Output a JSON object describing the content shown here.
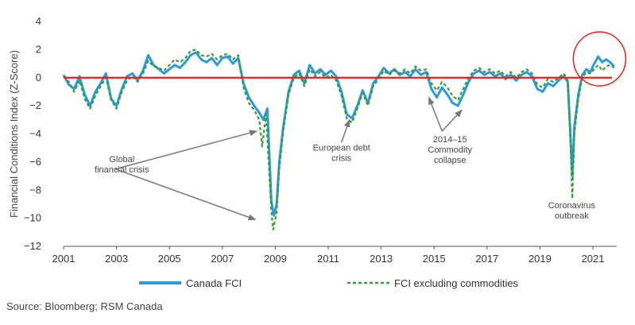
{
  "chart_data": {
    "type": "line",
    "ylabel": "Financial Conditions Index (Z-Score)",
    "xlim": [
      2001,
      2021.9
    ],
    "ylim": [
      -12,
      4
    ],
    "yticks": [
      4,
      2,
      0,
      -2,
      -4,
      -6,
      -8,
      -10,
      -12
    ],
    "ytick_labels": [
      "4",
      "2",
      "0",
      "−2",
      "−4",
      "−6",
      "−8",
      "−10",
      "−12"
    ],
    "xticks": [
      2001,
      2003,
      2005,
      2007,
      2009,
      2011,
      2013,
      2015,
      2017,
      2019,
      2021
    ],
    "xtick_labels": [
      "2001",
      "2003",
      "2005",
      "2007",
      "2009",
      "2011",
      "2013",
      "2015",
      "2017",
      "2019",
      "2021"
    ],
    "zero_line": {
      "value": 0,
      "color": "#e8201a"
    },
    "legend_position": "bottom",
    "series": [
      {
        "name": "Canada FCI",
        "color": "#2a9ad8",
        "style": "solid",
        "points": [
          [
            2001.0,
            0.2
          ],
          [
            2001.2,
            -0.5
          ],
          [
            2001.4,
            -0.8
          ],
          [
            2001.6,
            0.1
          ],
          [
            2001.8,
            -1.2
          ],
          [
            2002.0,
            -2.0
          ],
          [
            2002.2,
            -1.0
          ],
          [
            2002.4,
            -0.4
          ],
          [
            2002.6,
            0.3
          ],
          [
            2002.8,
            -1.5
          ],
          [
            2003.0,
            -2.0
          ],
          [
            2003.2,
            -0.8
          ],
          [
            2003.4,
            0.1
          ],
          [
            2003.6,
            0.3
          ],
          [
            2003.8,
            -0.2
          ],
          [
            2004.0,
            0.5
          ],
          [
            2004.2,
            1.6
          ],
          [
            2004.4,
            0.9
          ],
          [
            2004.6,
            0.6
          ],
          [
            2004.8,
            0.3
          ],
          [
            2005.0,
            0.6
          ],
          [
            2005.2,
            0.9
          ],
          [
            2005.4,
            0.7
          ],
          [
            2005.6,
            1.1
          ],
          [
            2005.8,
            1.6
          ],
          [
            2006.0,
            1.8
          ],
          [
            2006.2,
            1.3
          ],
          [
            2006.4,
            1.1
          ],
          [
            2006.6,
            1.4
          ],
          [
            2006.8,
            0.9
          ],
          [
            2007.0,
            1.4
          ],
          [
            2007.2,
            1.5
          ],
          [
            2007.4,
            1.0
          ],
          [
            2007.6,
            1.4
          ],
          [
            2007.8,
            -0.4
          ],
          [
            2008.0,
            -1.4
          ],
          [
            2008.2,
            -2.0
          ],
          [
            2008.4,
            -2.5
          ],
          [
            2008.55,
            -3.0
          ],
          [
            2008.7,
            -2.2
          ],
          [
            2008.85,
            -8.8
          ],
          [
            2008.95,
            -9.8
          ],
          [
            2009.05,
            -9.0
          ],
          [
            2009.15,
            -6.0
          ],
          [
            2009.3,
            -3.5
          ],
          [
            2009.5,
            -1.0
          ],
          [
            2009.7,
            0.2
          ],
          [
            2009.9,
            0.5
          ],
          [
            2010.1,
            -0.4
          ],
          [
            2010.3,
            0.9
          ],
          [
            2010.5,
            0.3
          ],
          [
            2010.7,
            0.6
          ],
          [
            2010.9,
            0.2
          ],
          [
            2011.1,
            0.5
          ],
          [
            2011.3,
            0.1
          ],
          [
            2011.5,
            -1.0
          ],
          [
            2011.7,
            -2.6
          ],
          [
            2011.9,
            -2.9
          ],
          [
            2012.1,
            -2.0
          ],
          [
            2012.3,
            -0.9
          ],
          [
            2012.5,
            -1.8
          ],
          [
            2012.7,
            -0.4
          ],
          [
            2012.9,
            0.1
          ],
          [
            2013.1,
            0.7
          ],
          [
            2013.3,
            0.3
          ],
          [
            2013.5,
            0.6
          ],
          [
            2013.7,
            0.2
          ],
          [
            2013.9,
            0.4
          ],
          [
            2014.1,
            0.1
          ],
          [
            2014.3,
            0.6
          ],
          [
            2014.5,
            0.2
          ],
          [
            2014.7,
            0.4
          ],
          [
            2014.9,
            -0.8
          ],
          [
            2015.1,
            -1.4
          ],
          [
            2015.3,
            -0.7
          ],
          [
            2015.5,
            -1.2
          ],
          [
            2015.7,
            -1.8
          ],
          [
            2015.9,
            -2.0
          ],
          [
            2016.1,
            -1.2
          ],
          [
            2016.3,
            -0.3
          ],
          [
            2016.5,
            0.3
          ],
          [
            2016.7,
            0.5
          ],
          [
            2016.9,
            0.2
          ],
          [
            2017.1,
            0.4
          ],
          [
            2017.3,
            0.1
          ],
          [
            2017.5,
            0.3
          ],
          [
            2017.7,
            -0.1
          ],
          [
            2017.9,
            0.2
          ],
          [
            2018.1,
            -0.2
          ],
          [
            2018.3,
            0.2
          ],
          [
            2018.5,
            0.4
          ],
          [
            2018.7,
            0.1
          ],
          [
            2018.9,
            -0.8
          ],
          [
            2019.1,
            -1.0
          ],
          [
            2019.3,
            -0.4
          ],
          [
            2019.5,
            -0.6
          ],
          [
            2019.7,
            -0.2
          ],
          [
            2019.9,
            0.1
          ],
          [
            2020.05,
            -0.3
          ],
          [
            2020.15,
            -4.0
          ],
          [
            2020.22,
            -7.0
          ],
          [
            2020.3,
            -3.5
          ],
          [
            2020.45,
            -1.2
          ],
          [
            2020.6,
            0.2
          ],
          [
            2020.75,
            0.6
          ],
          [
            2020.9,
            0.4
          ],
          [
            2021.05,
            1.0
          ],
          [
            2021.2,
            1.5
          ],
          [
            2021.35,
            1.1
          ],
          [
            2021.5,
            1.3
          ],
          [
            2021.65,
            1.1
          ],
          [
            2021.8,
            0.8
          ]
        ]
      },
      {
        "name": "FCI excluding commodities",
        "color": "#3a9a3a",
        "style": "dashed",
        "points": [
          [
            2001.0,
            0.1
          ],
          [
            2001.2,
            -0.3
          ],
          [
            2001.4,
            -1.0
          ],
          [
            2001.6,
            -0.2
          ],
          [
            2001.8,
            -1.5
          ],
          [
            2002.0,
            -2.2
          ],
          [
            2002.2,
            -1.3
          ],
          [
            2002.4,
            -0.6
          ],
          [
            2002.6,
            0.0
          ],
          [
            2002.8,
            -1.6
          ],
          [
            2003.0,
            -2.2
          ],
          [
            2003.2,
            -1.0
          ],
          [
            2003.4,
            -0.2
          ],
          [
            2003.6,
            0.1
          ],
          [
            2003.8,
            -0.3
          ],
          [
            2004.0,
            0.3
          ],
          [
            2004.2,
            1.2
          ],
          [
            2004.4,
            0.8
          ],
          [
            2004.6,
            0.7
          ],
          [
            2004.8,
            0.5
          ],
          [
            2005.0,
            0.9
          ],
          [
            2005.2,
            1.3
          ],
          [
            2005.4,
            1.1
          ],
          [
            2005.6,
            1.4
          ],
          [
            2005.8,
            1.9
          ],
          [
            2006.0,
            2.0
          ],
          [
            2006.2,
            1.6
          ],
          [
            2006.4,
            1.5
          ],
          [
            2006.6,
            1.7
          ],
          [
            2006.8,
            1.3
          ],
          [
            2007.0,
            1.6
          ],
          [
            2007.2,
            1.7
          ],
          [
            2007.4,
            1.3
          ],
          [
            2007.6,
            1.6
          ],
          [
            2007.8,
            -0.7
          ],
          [
            2008.0,
            -1.8
          ],
          [
            2008.2,
            -2.3
          ],
          [
            2008.4,
            -3.0
          ],
          [
            2008.5,
            -4.9
          ],
          [
            2008.65,
            -2.6
          ],
          [
            2008.85,
            -9.5
          ],
          [
            2008.92,
            -10.8
          ],
          [
            2009.05,
            -9.6
          ],
          [
            2009.15,
            -6.5
          ],
          [
            2009.3,
            -3.8
          ],
          [
            2009.5,
            -1.2
          ],
          [
            2009.7,
            0.0
          ],
          [
            2009.9,
            0.3
          ],
          [
            2010.1,
            -0.6
          ],
          [
            2010.3,
            0.6
          ],
          [
            2010.5,
            0.1
          ],
          [
            2010.7,
            0.4
          ],
          [
            2010.9,
            0.0
          ],
          [
            2011.1,
            0.2
          ],
          [
            2011.3,
            -0.2
          ],
          [
            2011.5,
            -1.3
          ],
          [
            2011.7,
            -2.9
          ],
          [
            2011.9,
            -3.2
          ],
          [
            2012.1,
            -2.2
          ],
          [
            2012.3,
            -1.1
          ],
          [
            2012.5,
            -2.0
          ],
          [
            2012.7,
            -0.6
          ],
          [
            2012.9,
            -0.1
          ],
          [
            2013.1,
            0.5
          ],
          [
            2013.3,
            0.2
          ],
          [
            2013.5,
            0.5
          ],
          [
            2013.7,
            0.3
          ],
          [
            2013.9,
            0.6
          ],
          [
            2014.1,
            0.3
          ],
          [
            2014.3,
            0.8
          ],
          [
            2014.5,
            0.5
          ],
          [
            2014.7,
            0.6
          ],
          [
            2014.9,
            -0.4
          ],
          [
            2015.1,
            -0.9
          ],
          [
            2015.3,
            -0.3
          ],
          [
            2015.5,
            -0.7
          ],
          [
            2015.7,
            -1.3
          ],
          [
            2015.9,
            -1.6
          ],
          [
            2016.1,
            -0.8
          ],
          [
            2016.3,
            0.0
          ],
          [
            2016.5,
            0.5
          ],
          [
            2016.7,
            0.7
          ],
          [
            2016.9,
            0.4
          ],
          [
            2017.1,
            0.6
          ],
          [
            2017.3,
            0.3
          ],
          [
            2017.5,
            0.5
          ],
          [
            2017.7,
            0.1
          ],
          [
            2017.9,
            0.4
          ],
          [
            2018.1,
            0.0
          ],
          [
            2018.3,
            0.4
          ],
          [
            2018.5,
            0.6
          ],
          [
            2018.7,
            0.3
          ],
          [
            2018.9,
            -0.5
          ],
          [
            2019.1,
            -0.7
          ],
          [
            2019.3,
            -0.1
          ],
          [
            2019.5,
            -0.3
          ],
          [
            2019.7,
            0.0
          ],
          [
            2019.9,
            0.3
          ],
          [
            2020.05,
            -0.2
          ],
          [
            2020.15,
            -4.5
          ],
          [
            2020.22,
            -8.6
          ],
          [
            2020.3,
            -4.0
          ],
          [
            2020.45,
            -1.5
          ],
          [
            2020.6,
            0.0
          ],
          [
            2020.75,
            0.4
          ],
          [
            2020.9,
            0.3
          ],
          [
            2021.05,
            0.6
          ],
          [
            2021.2,
            0.9
          ],
          [
            2021.35,
            0.5
          ],
          [
            2021.5,
            0.8
          ],
          [
            2021.65,
            0.9
          ],
          [
            2021.8,
            0.7
          ]
        ]
      }
    ],
    "annotations": [
      {
        "lines": [
          "Global",
          "financial crisis"
        ],
        "text_at": [
          2003.2,
          -6.0
        ],
        "arrow_from": [
          2002.95,
          -6.5
        ],
        "arrows_to": [
          [
            2008.3,
            -3.8
          ],
          [
            2008.25,
            -10.1
          ]
        ]
      },
      {
        "lines": [
          "European debt",
          "crisis"
        ],
        "text_at": [
          2011.5,
          -5.2
        ],
        "arrow_from": [
          2011.5,
          -4.6
        ],
        "arrows_to": [
          [
            2011.8,
            -3.0
          ]
        ]
      },
      {
        "lines": [
          "2014–15",
          "Commodity",
          "collapse"
        ],
        "text_at": [
          2015.6,
          -4.6
        ],
        "arrow_from": [
          2015.3,
          -3.8
        ],
        "arrows_to": [
          [
            2014.8,
            -1.4
          ],
          [
            2016.05,
            -2.3
          ]
        ]
      },
      {
        "lines": [
          "Coronavirus",
          "outbreak"
        ],
        "text_at": [
          2020.2,
          -9.3
        ],
        "arrow_from": null,
        "arrows_to": []
      }
    ],
    "highlight_ellipse": {
      "color": "#e8201a",
      "center": [
        2021.25,
        1.0
      ]
    }
  },
  "source": "Source: Bloomberg; RSM Canada"
}
